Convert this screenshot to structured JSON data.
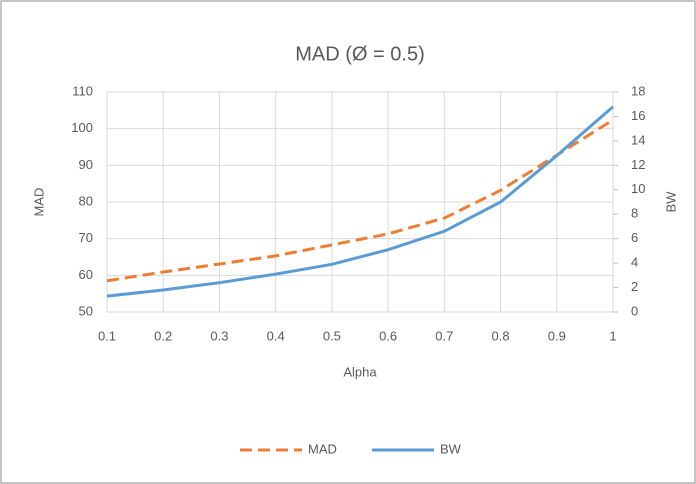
{
  "chart_data": {
    "type": "line",
    "title": "MAD (Ø = 0.5)",
    "x_label": "Alpha",
    "y_label": "MAD",
    "y2_label": "BW",
    "x": [
      0.1,
      0.2,
      0.3,
      0.4,
      0.5,
      0.6,
      0.7,
      0.8,
      0.9,
      1
    ],
    "series": [
      {
        "name": "MAD",
        "color": "#ed7d31",
        "dash": true,
        "values": [
          58.5,
          60.9,
          63.1,
          65.3,
          68.3,
          71.3,
          75.6,
          83.2,
          92.8,
          102.4
        ]
      },
      {
        "name": "BW",
        "color": "#5b9bd5",
        "axis": "y2",
        "values": [
          1.3,
          1.8,
          2.4,
          3.1,
          3.9,
          5.1,
          6.6,
          9.0,
          12.8,
          16.8
        ]
      }
    ],
    "xlim": [
      0.1,
      1
    ],
    "xticks": [
      0.1,
      0.2,
      0.3,
      0.4,
      0.5,
      0.6,
      0.7,
      0.8,
      0.9,
      1
    ],
    "ylim": [
      50,
      110
    ],
    "yticks": [
      50,
      60,
      70,
      80,
      90,
      100,
      110
    ],
    "y2lim": [
      0,
      18
    ],
    "y2ticks": [
      0,
      2,
      4,
      6,
      8,
      10,
      12,
      14,
      16,
      18
    ],
    "grid": true,
    "legend": "bottom"
  }
}
